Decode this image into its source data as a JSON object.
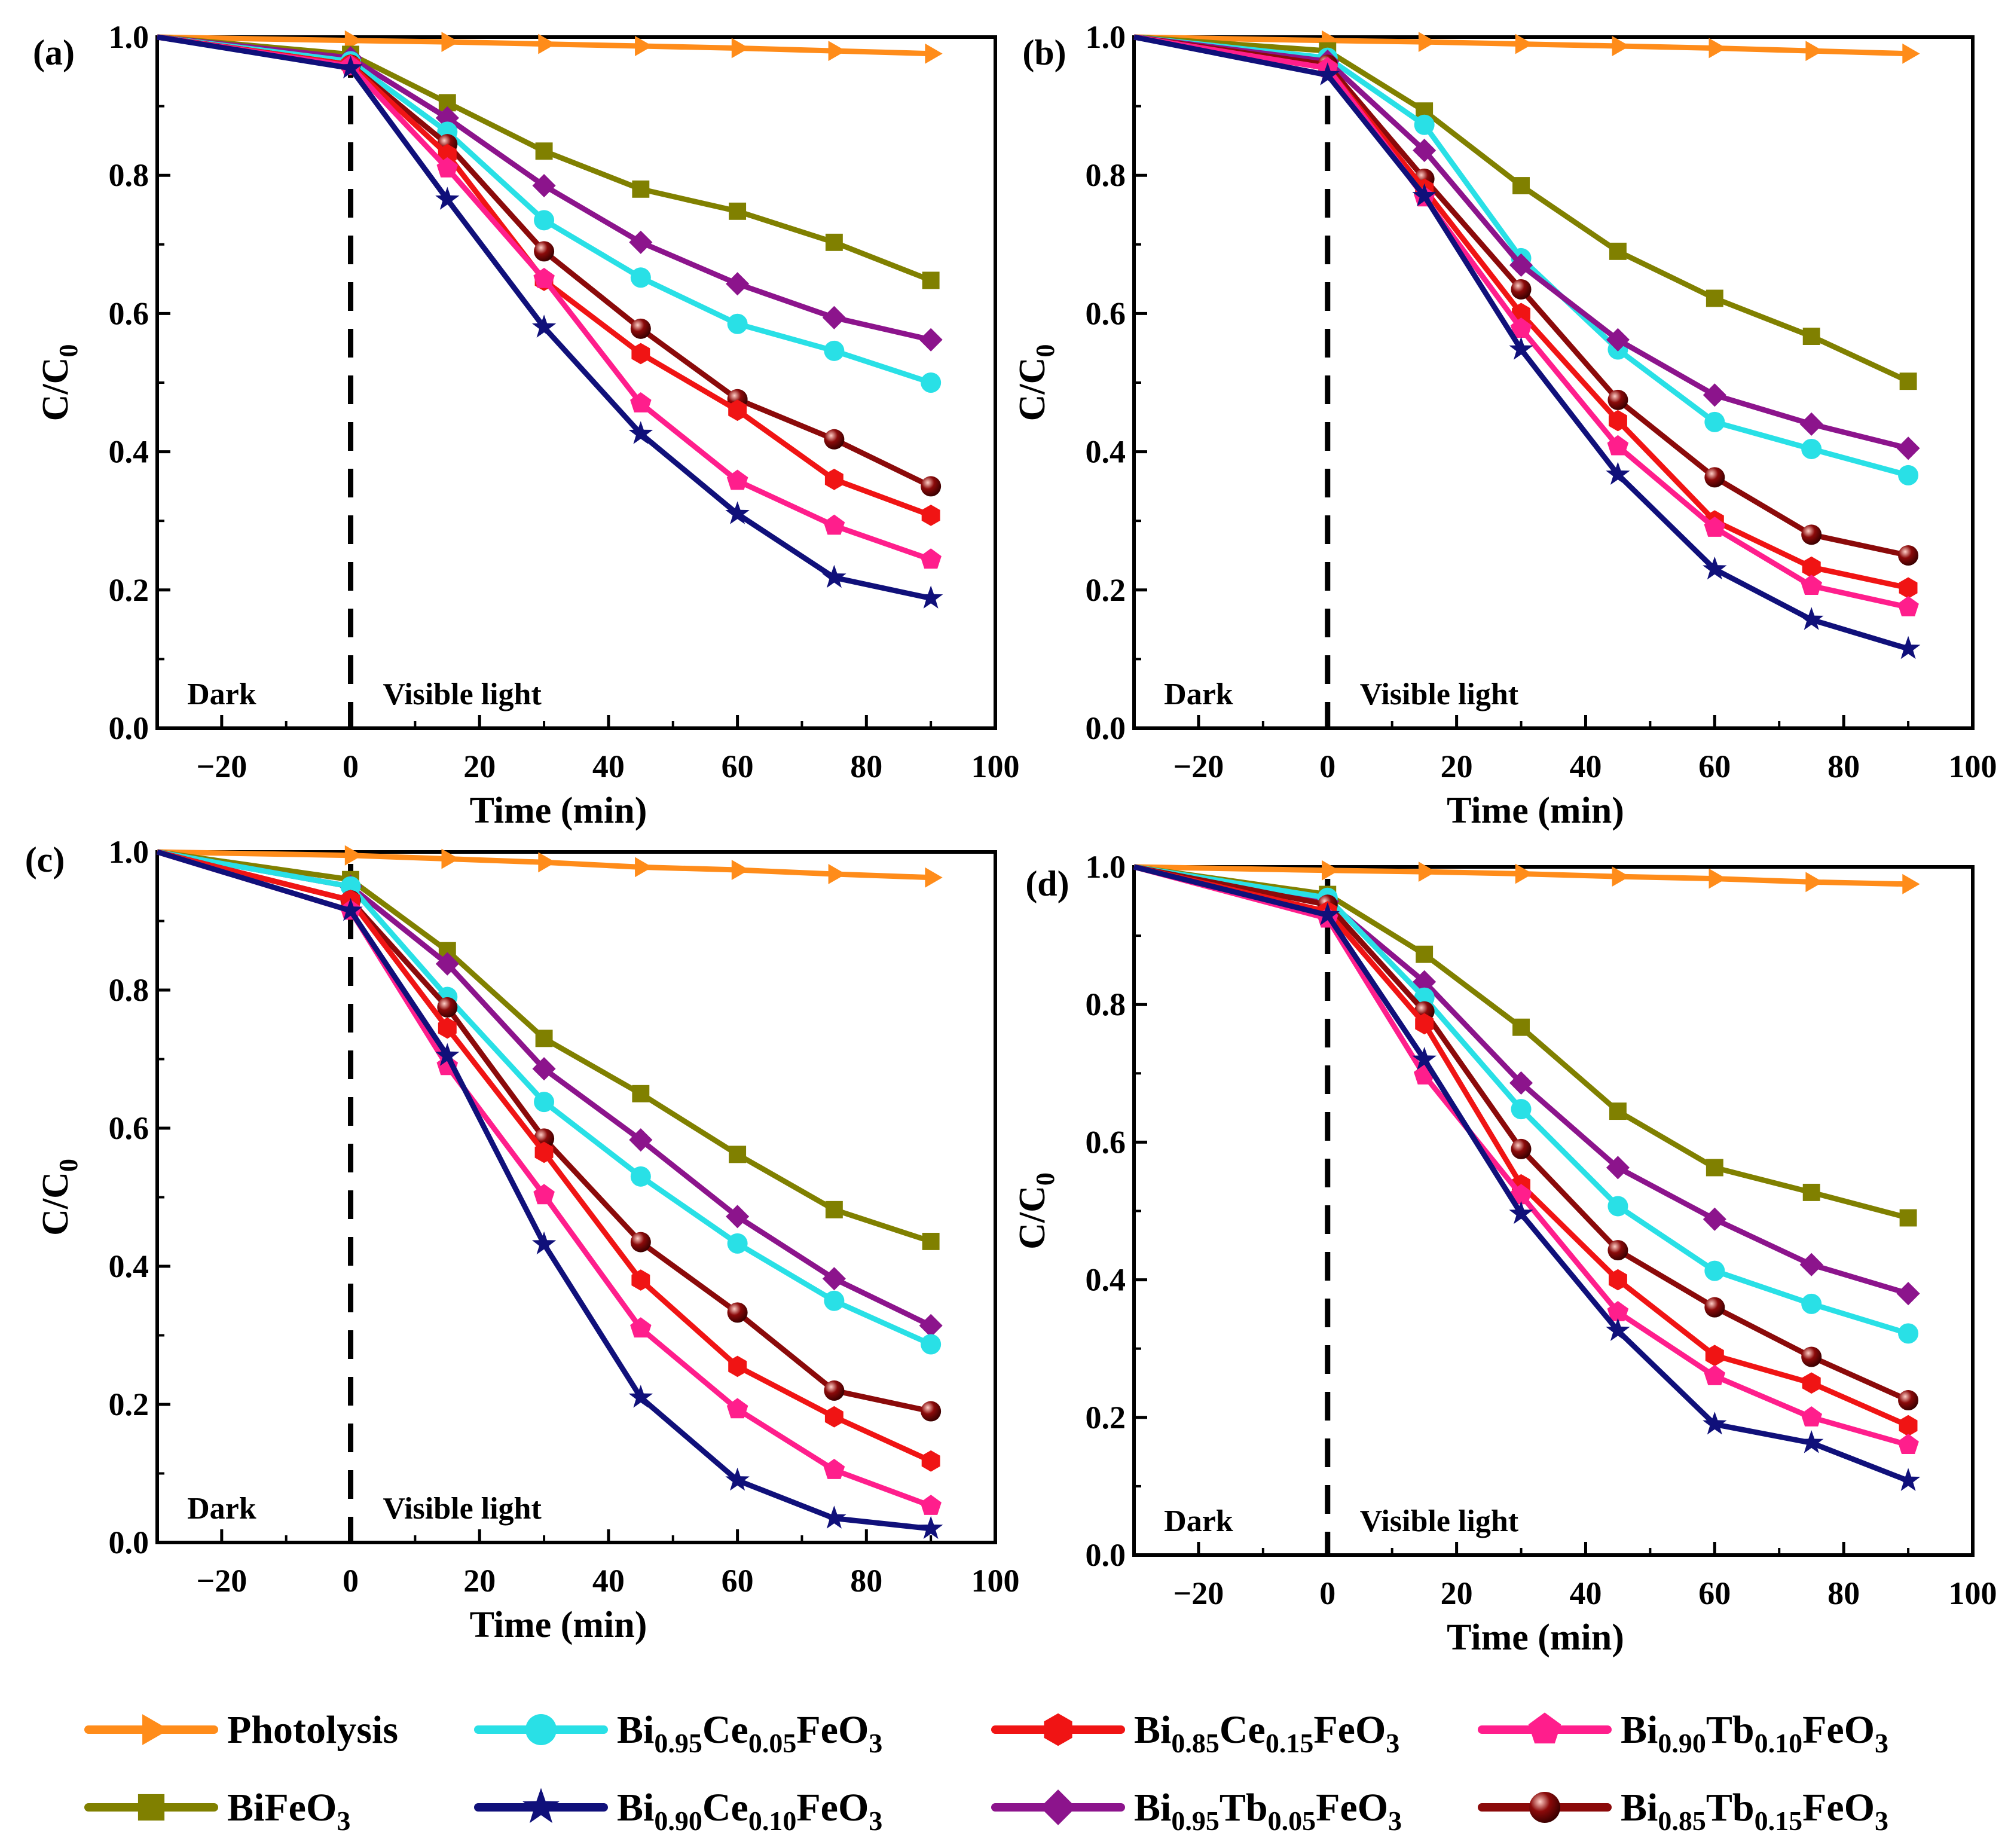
{
  "chart_data": {
    "type": "line",
    "x_label": "Time (min)",
    "y_label_main": "C/C",
    "y_label_sub": "0",
    "xlim": [
      -30,
      100
    ],
    "ylim": [
      0.0,
      1.0
    ],
    "x_ticks": [
      "−20",
      "0",
      "20",
      "40",
      "60",
      "80",
      "100"
    ],
    "x_tick_values": [
      -20,
      0,
      20,
      40,
      60,
      80,
      100
    ],
    "y_ticks": [
      "0.0",
      "0.2",
      "0.4",
      "0.6",
      "0.8",
      "1.0"
    ],
    "y_tick_values": [
      0.0,
      0.2,
      0.4,
      0.6,
      0.8,
      1.0
    ],
    "region_labels": {
      "dark": "Dark",
      "light": "Visible light"
    },
    "divider_x": 0,
    "x": [
      -30,
      0,
      15,
      30,
      45,
      60,
      75,
      90
    ],
    "legend": [
      {
        "key": "photolysis",
        "parts": [
          {
            "t": "Photolysis",
            "s": ""
          }
        ]
      },
      {
        "key": "bifeo3",
        "parts": [
          {
            "t": "BiFeO",
            "s": ""
          },
          {
            "t": "3",
            "s": "sub"
          }
        ]
      },
      {
        "key": "ce005",
        "parts": [
          {
            "t": "Bi",
            "s": ""
          },
          {
            "t": "0.95",
            "s": "sub"
          },
          {
            "t": "Ce",
            "s": ""
          },
          {
            "t": "0.05",
            "s": "sub"
          },
          {
            "t": "FeO",
            "s": ""
          },
          {
            "t": "3",
            "s": "sub"
          }
        ]
      },
      {
        "key": "ce010",
        "parts": [
          {
            "t": "Bi",
            "s": ""
          },
          {
            "t": "0.90",
            "s": "sub"
          },
          {
            "t": "Ce",
            "s": ""
          },
          {
            "t": "0.10",
            "s": "sub"
          },
          {
            "t": "FeO",
            "s": ""
          },
          {
            "t": "3",
            "s": "sub"
          }
        ]
      },
      {
        "key": "ce015",
        "parts": [
          {
            "t": "Bi",
            "s": ""
          },
          {
            "t": "0.85",
            "s": "sub"
          },
          {
            "t": "Ce",
            "s": ""
          },
          {
            "t": "0.15",
            "s": "sub"
          },
          {
            "t": "FeO",
            "s": ""
          },
          {
            "t": "3",
            "s": "sub"
          }
        ]
      },
      {
        "key": "tb005",
        "parts": [
          {
            "t": "Bi",
            "s": ""
          },
          {
            "t": "0.95",
            "s": "sub"
          },
          {
            "t": "Tb",
            "s": ""
          },
          {
            "t": "0.05",
            "s": "sub"
          },
          {
            "t": "FeO",
            "s": ""
          },
          {
            "t": "3",
            "s": "sub"
          }
        ]
      },
      {
        "key": "tb010",
        "parts": [
          {
            "t": "Bi",
            "s": ""
          },
          {
            "t": "0.90",
            "s": "sub"
          },
          {
            "t": "Tb",
            "s": ""
          },
          {
            "t": "0.10",
            "s": "sub"
          },
          {
            "t": "FeO",
            "s": ""
          },
          {
            "t": "3",
            "s": "sub"
          }
        ]
      },
      {
        "key": "tb015",
        "parts": [
          {
            "t": "Bi",
            "s": ""
          },
          {
            "t": "0.85",
            "s": "sub"
          },
          {
            "t": "Tb",
            "s": ""
          },
          {
            "t": "0.15",
            "s": "sub"
          },
          {
            "t": "FeO",
            "s": ""
          },
          {
            "t": "3",
            "s": "sub"
          }
        ]
      }
    ],
    "series_style": {
      "photolysis": {
        "color": "#FF8C1A",
        "marker": "triangle-right"
      },
      "bifeo3": {
        "color": "#808000",
        "marker": "square"
      },
      "ce005": {
        "color": "#29E0E6",
        "marker": "circle"
      },
      "ce010": {
        "color": "#10107A",
        "marker": "star"
      },
      "ce015": {
        "color": "#F01414",
        "marker": "hexagon"
      },
      "tb005": {
        "color": "#8C148C",
        "marker": "diamond"
      },
      "tb010": {
        "color": "#FF1E8C",
        "marker": "pentagon"
      },
      "tb015": {
        "color": "#8B0A0A",
        "marker": "sphere"
      }
    },
    "panels": [
      {
        "label": "(a)",
        "series": [
          {
            "key": "photolysis",
            "values": [
              1.0,
              0.995,
              0.993,
              0.99,
              0.987,
              0.984,
              0.98,
              0.976
            ]
          },
          {
            "key": "bifeo3",
            "values": [
              1.0,
              0.975,
              0.905,
              0.835,
              0.78,
              0.748,
              0.703,
              0.648
            ]
          },
          {
            "key": "tb005",
            "values": [
              1.0,
              0.97,
              0.883,
              0.785,
              0.703,
              0.643,
              0.594,
              0.562
            ]
          },
          {
            "key": "ce005",
            "values": [
              1.0,
              0.965,
              0.863,
              0.735,
              0.652,
              0.585,
              0.546,
              0.5
            ]
          },
          {
            "key": "tb015",
            "values": [
              1.0,
              0.96,
              0.845,
              0.69,
              0.578,
              0.476,
              0.418,
              0.35
            ]
          },
          {
            "key": "ce015",
            "values": [
              1.0,
              0.96,
              0.83,
              0.648,
              0.542,
              0.46,
              0.36,
              0.308
            ]
          },
          {
            "key": "tb010",
            "values": [
              1.0,
              0.958,
              0.81,
              0.65,
              0.47,
              0.358,
              0.293,
              0.244
            ]
          },
          {
            "key": "ce010",
            "values": [
              1.0,
              0.955,
              0.765,
              0.58,
              0.426,
              0.31,
              0.218,
              0.188
            ]
          }
        ]
      },
      {
        "label": "(b)",
        "series": [
          {
            "key": "photolysis",
            "values": [
              1.0,
              0.995,
              0.993,
              0.99,
              0.987,
              0.984,
              0.98,
              0.976
            ]
          },
          {
            "key": "bifeo3",
            "values": [
              1.0,
              0.98,
              0.893,
              0.785,
              0.69,
              0.622,
              0.567,
              0.502
            ]
          },
          {
            "key": "ce005",
            "values": [
              1.0,
              0.97,
              0.873,
              0.68,
              0.548,
              0.443,
              0.404,
              0.366
            ]
          },
          {
            "key": "tb005",
            "values": [
              1.0,
              0.965,
              0.836,
              0.67,
              0.562,
              0.482,
              0.44,
              0.405
            ]
          },
          {
            "key": "tb015",
            "values": [
              1.0,
              0.96,
              0.795,
              0.635,
              0.475,
              0.363,
              0.28,
              0.25
            ]
          },
          {
            "key": "ce015",
            "values": [
              1.0,
              0.955,
              0.78,
              0.6,
              0.445,
              0.3,
              0.233,
              0.203
            ]
          },
          {
            "key": "tb010",
            "values": [
              1.0,
              0.955,
              0.768,
              0.578,
              0.408,
              0.29,
              0.206,
              0.175
            ]
          },
          {
            "key": "ce010",
            "values": [
              1.0,
              0.945,
              0.77,
              0.548,
              0.367,
              0.23,
              0.157,
              0.115
            ]
          }
        ]
      },
      {
        "label": "(c)",
        "series": [
          {
            "key": "photolysis",
            "values": [
              1.0,
              0.995,
              0.99,
              0.985,
              0.978,
              0.974,
              0.968,
              0.963
            ]
          },
          {
            "key": "bifeo3",
            "values": [
              1.0,
              0.96,
              0.857,
              0.73,
              0.65,
              0.562,
              0.482,
              0.436
            ]
          },
          {
            "key": "tb005",
            "values": [
              1.0,
              0.95,
              0.838,
              0.686,
              0.583,
              0.472,
              0.382,
              0.314
            ]
          },
          {
            "key": "ce005",
            "values": [
              1.0,
              0.95,
              0.79,
              0.638,
              0.53,
              0.433,
              0.35,
              0.287
            ]
          },
          {
            "key": "tb015",
            "values": [
              1.0,
              0.93,
              0.775,
              0.585,
              0.435,
              0.333,
              0.22,
              0.19
            ]
          },
          {
            "key": "ce015",
            "values": [
              1.0,
              0.93,
              0.745,
              0.565,
              0.38,
              0.255,
              0.182,
              0.118
            ]
          },
          {
            "key": "tb010",
            "values": [
              1.0,
              0.915,
              0.69,
              0.503,
              0.31,
              0.193,
              0.105,
              0.053
            ]
          },
          {
            "key": "ce010",
            "values": [
              1.0,
              0.915,
              0.705,
              0.432,
              0.21,
              0.09,
              0.035,
              0.02
            ]
          }
        ]
      },
      {
        "label": "(d)",
        "series": [
          {
            "key": "photolysis",
            "values": [
              1.0,
              0.995,
              0.993,
              0.99,
              0.986,
              0.983,
              0.978,
              0.975
            ]
          },
          {
            "key": "bifeo3",
            "values": [
              1.0,
              0.96,
              0.873,
              0.767,
              0.645,
              0.563,
              0.527,
              0.49
            ]
          },
          {
            "key": "tb005",
            "values": [
              1.0,
              0.95,
              0.833,
              0.686,
              0.563,
              0.488,
              0.422,
              0.38
            ]
          },
          {
            "key": "ce005",
            "values": [
              1.0,
              0.955,
              0.81,
              0.648,
              0.507,
              0.413,
              0.365,
              0.322
            ]
          },
          {
            "key": "tb015",
            "values": [
              1.0,
              0.945,
              0.79,
              0.59,
              0.443,
              0.36,
              0.288,
              0.225
            ]
          },
          {
            "key": "ce015",
            "values": [
              1.0,
              0.935,
              0.772,
              0.538,
              0.4,
              0.29,
              0.25,
              0.188
            ]
          },
          {
            "key": "tb010",
            "values": [
              1.0,
              0.925,
              0.697,
              0.523,
              0.353,
              0.26,
              0.2,
              0.16
            ]
          },
          {
            "key": "ce010",
            "values": [
              1.0,
              0.93,
              0.72,
              0.496,
              0.326,
              0.19,
              0.163,
              0.108
            ]
          }
        ]
      }
    ]
  }
}
